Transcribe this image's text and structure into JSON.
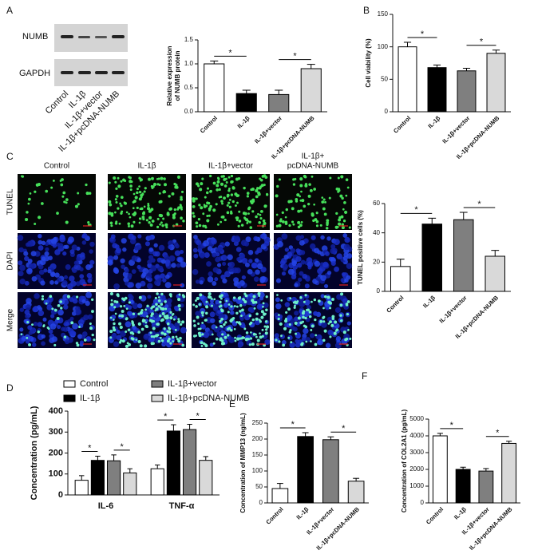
{
  "figure": {
    "panel_labels": [
      "A",
      "B",
      "C",
      "D",
      "E",
      "F"
    ],
    "blot": {
      "bands": [
        "NUMB",
        "GAPDH"
      ],
      "lanes": [
        "Control",
        "IL-1β",
        "IL-1β+vector",
        "IL-1β+pcDNA-NUMB"
      ]
    },
    "micrographs": {
      "columns": [
        [
          "Control"
        ],
        [
          "IL-1β"
        ],
        [
          "IL-1β+vector"
        ],
        [
          "IL-1β+",
          "pcDNA-NUMB"
        ]
      ],
      "rows": [
        "TUNEL",
        "DAPI",
        "Merge"
      ]
    }
  },
  "chart_data": [
    {
      "type": "bar",
      "ylabel": [
        "Relative expression",
        "of NUMB protein"
      ],
      "categories": [
        "Control",
        "IL-1β",
        "IL-1β+vector",
        "IL-1β+pcDNA-NUMB"
      ],
      "values": [
        1.0,
        0.38,
        0.36,
        0.9
      ],
      "errors": [
        0.06,
        0.07,
        0.09,
        0.09
      ],
      "colors": [
        "#ffffff",
        "#000000",
        "#7f7f7f",
        "#d9d9d9"
      ],
      "ylim": [
        0,
        1.5
      ],
      "yticks": [
        {
          "value": 0,
          "label": "0.0"
        },
        {
          "value": 0.5,
          "label": "0.5"
        },
        {
          "value": 1,
          "label": "1.0"
        },
        {
          "value": 1.5,
          "label": "1.5"
        }
      ],
      "annotations": [
        {
          "label": "*",
          "between": [
            0,
            1
          ]
        },
        {
          "label": "*",
          "between": [
            2,
            3
          ]
        }
      ]
    },
    {
      "type": "bar",
      "ylabel": [
        "Cell viability (%)"
      ],
      "categories": [
        "Control",
        "IL-1β",
        "IL-1β+vector",
        "IL-1β+pcDNA-NUMB"
      ],
      "values": [
        100,
        68,
        63,
        90
      ],
      "errors": [
        7,
        4,
        4,
        5
      ],
      "colors": [
        "#ffffff",
        "#000000",
        "#7f7f7f",
        "#d9d9d9"
      ],
      "ylim": [
        0,
        150
      ],
      "yticks": [
        0,
        50,
        100,
        150
      ],
      "annotations": [
        {
          "label": "*",
          "between": [
            0,
            1
          ]
        },
        {
          "label": "*",
          "between": [
            2,
            3
          ]
        }
      ]
    },
    {
      "type": "bar",
      "ylabel": [
        "TUNEL positive cells (%)"
      ],
      "categories": [
        "Control",
        "IL-1β",
        "IL-1β+vector",
        "IL-1β+pcDNA-NUMB"
      ],
      "values": [
        17,
        46,
        49,
        24
      ],
      "errors": [
        5,
        4,
        5,
        4
      ],
      "colors": [
        "#ffffff",
        "#000000",
        "#7f7f7f",
        "#d9d9d9"
      ],
      "ylim": [
        0,
        60
      ],
      "yticks": [
        0,
        20,
        40,
        60
      ],
      "annotations": [
        {
          "label": "*",
          "between": [
            0,
            1
          ]
        },
        {
          "label": "*",
          "between": [
            2,
            3
          ]
        }
      ]
    },
    {
      "type": "grouped_bar",
      "ylabel": [
        "Concentration (pg/mL)"
      ],
      "categories": [
        "IL-6",
        "TNF-α"
      ],
      "series": [
        {
          "name": "Control",
          "color": "#ffffff",
          "values": [
            70,
            125
          ],
          "errors": [
            22,
            18
          ]
        },
        {
          "name": "IL-1β",
          "color": "#000000",
          "values": [
            165,
            305
          ],
          "errors": [
            20,
            30
          ]
        },
        {
          "name": "IL-1β+vector",
          "color": "#7f7f7f",
          "values": [
            163,
            312
          ],
          "errors": [
            28,
            25
          ]
        },
        {
          "name": "IL-1β+pcDNA-NUMB",
          "color": "#d9d9d9",
          "values": [
            105,
            165
          ],
          "errors": [
            20,
            18
          ]
        }
      ],
      "ylim": [
        0,
        400
      ],
      "yticks": [
        0,
        100,
        200,
        300,
        400
      ],
      "annotations": [
        {
          "label": "*",
          "category": 0,
          "between": [
            0,
            1
          ]
        },
        {
          "label": "*",
          "category": 0,
          "between": [
            2,
            3
          ]
        },
        {
          "label": "*",
          "category": 1,
          "between": [
            0,
            1
          ]
        },
        {
          "label": "*",
          "category": 1,
          "between": [
            2,
            3
          ]
        }
      ]
    },
    {
      "type": "bar",
      "ylabel": [
        "Concentration of MMP13 (ng/mL)"
      ],
      "categories": [
        "Control",
        "IL-1β",
        "IL-1β+vector",
        "IL-1β+pcDNA-NUMB"
      ],
      "values": [
        45,
        208,
        198,
        68
      ],
      "errors": [
        16,
        12,
        9,
        9
      ],
      "colors": [
        "#ffffff",
        "#000000",
        "#7f7f7f",
        "#d9d9d9"
      ],
      "ylim": [
        0,
        250
      ],
      "yticks": [
        0,
        50,
        100,
        150,
        200,
        250
      ],
      "annotations": [
        {
          "label": "*",
          "between": [
            0,
            1
          ]
        },
        {
          "label": "*",
          "between": [
            2,
            3
          ]
        }
      ]
    },
    {
      "type": "bar",
      "ylabel": [
        "Concentration of COL2A1 (pg/mL)"
      ],
      "categories": [
        "Control",
        "IL-1β",
        "IL-1β+vector",
        "IL-1β+pcDNA-NUMB"
      ],
      "values": [
        4000,
        2000,
        1900,
        3550
      ],
      "errors": [
        150,
        130,
        150,
        130
      ],
      "colors": [
        "#ffffff",
        "#000000",
        "#7f7f7f",
        "#d9d9d9"
      ],
      "ylim": [
        0,
        5000
      ],
      "yticks": [
        0,
        1000,
        2000,
        3000,
        4000,
        5000
      ],
      "annotations": [
        {
          "label": "*",
          "between": [
            0,
            1
          ]
        },
        {
          "label": "*",
          "between": [
            2,
            3
          ]
        }
      ]
    }
  ]
}
